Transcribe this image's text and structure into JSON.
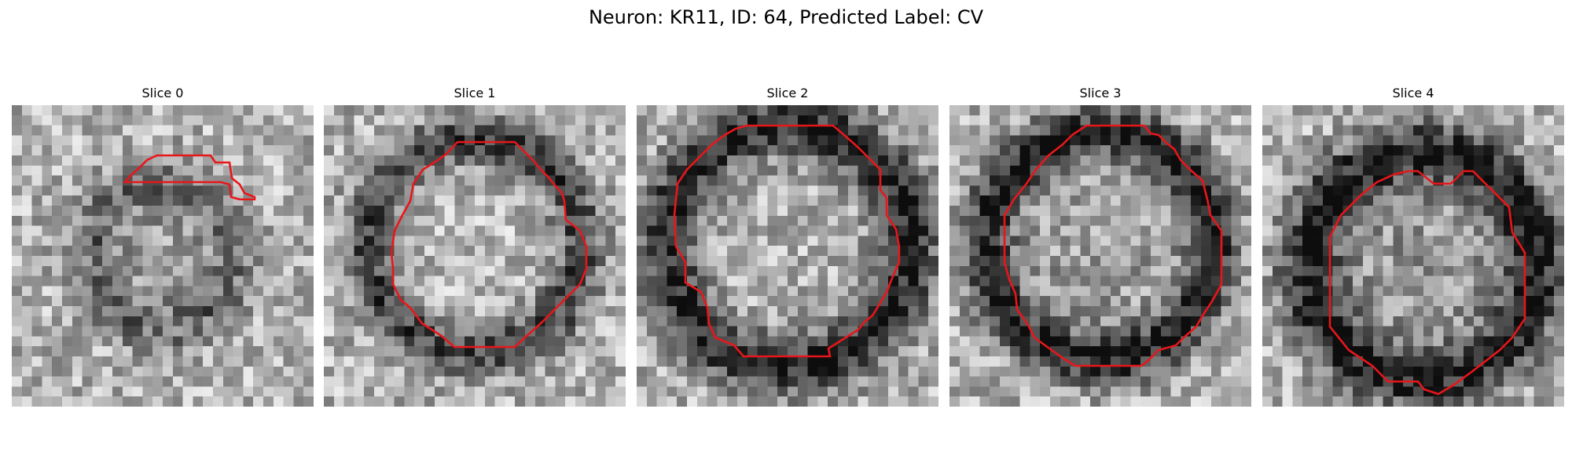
{
  "figure": {
    "title": "Neuron: KR11, ID: 64, Predicted Label: CV"
  },
  "panels": [
    {
      "title": "Slice 0",
      "pixel_image": "grayscale-micrograph",
      "outline": "red-segmentation-contour"
    },
    {
      "title": "Slice 1",
      "pixel_image": "grayscale-micrograph",
      "outline": "red-segmentation-contour"
    },
    {
      "title": "Slice 2",
      "pixel_image": "grayscale-micrograph",
      "outline": "red-segmentation-contour"
    },
    {
      "title": "Slice 3",
      "pixel_image": "grayscale-micrograph",
      "outline": "red-segmentation-contour"
    },
    {
      "title": "Slice 4",
      "pixel_image": "grayscale-micrograph",
      "outline": "red-segmentation-contour"
    }
  ],
  "colors": {
    "outline": "#e8161b"
  }
}
